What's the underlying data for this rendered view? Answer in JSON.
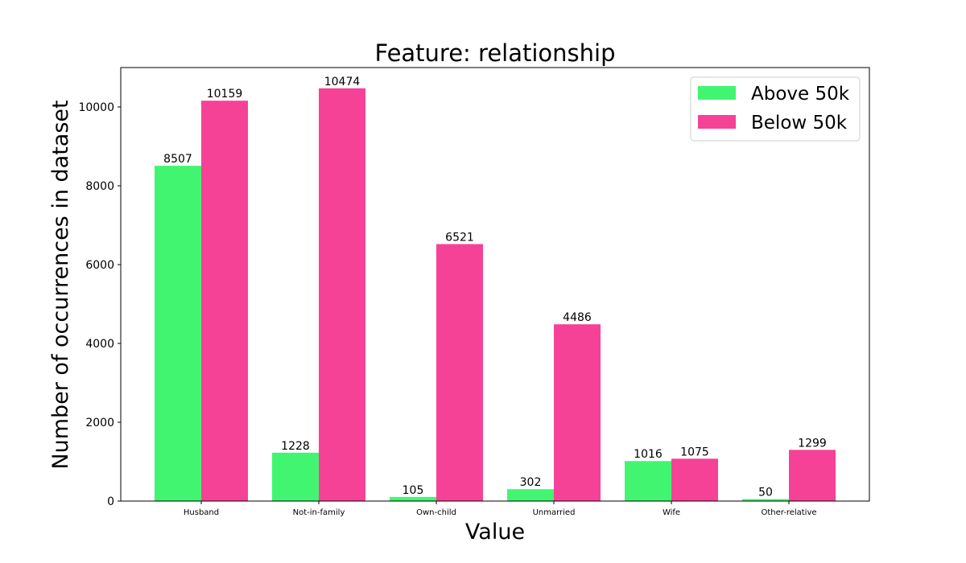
{
  "chart_data": {
    "type": "bar",
    "title": "Feature: relationship",
    "xlabel": "Value",
    "ylabel": "Number of occurrences in dataset",
    "categories": [
      "Husband",
      "Not-in-family",
      "Own-child",
      "Unmarried",
      "Wife",
      "Other-relative"
    ],
    "series": [
      {
        "name": "Above 50k",
        "color": "#42f571",
        "values": [
          8507,
          1228,
          105,
          302,
          1016,
          50
        ]
      },
      {
        "name": "Below 50k",
        "color": "#f54296",
        "values": [
          10159,
          10474,
          6521,
          4486,
          1075,
          1299
        ]
      }
    ],
    "ylim": [
      0,
      11000
    ],
    "yticks": [
      0,
      2000,
      4000,
      6000,
      8000,
      10000
    ],
    "grid": false,
    "legend_position": "top-right"
  }
}
